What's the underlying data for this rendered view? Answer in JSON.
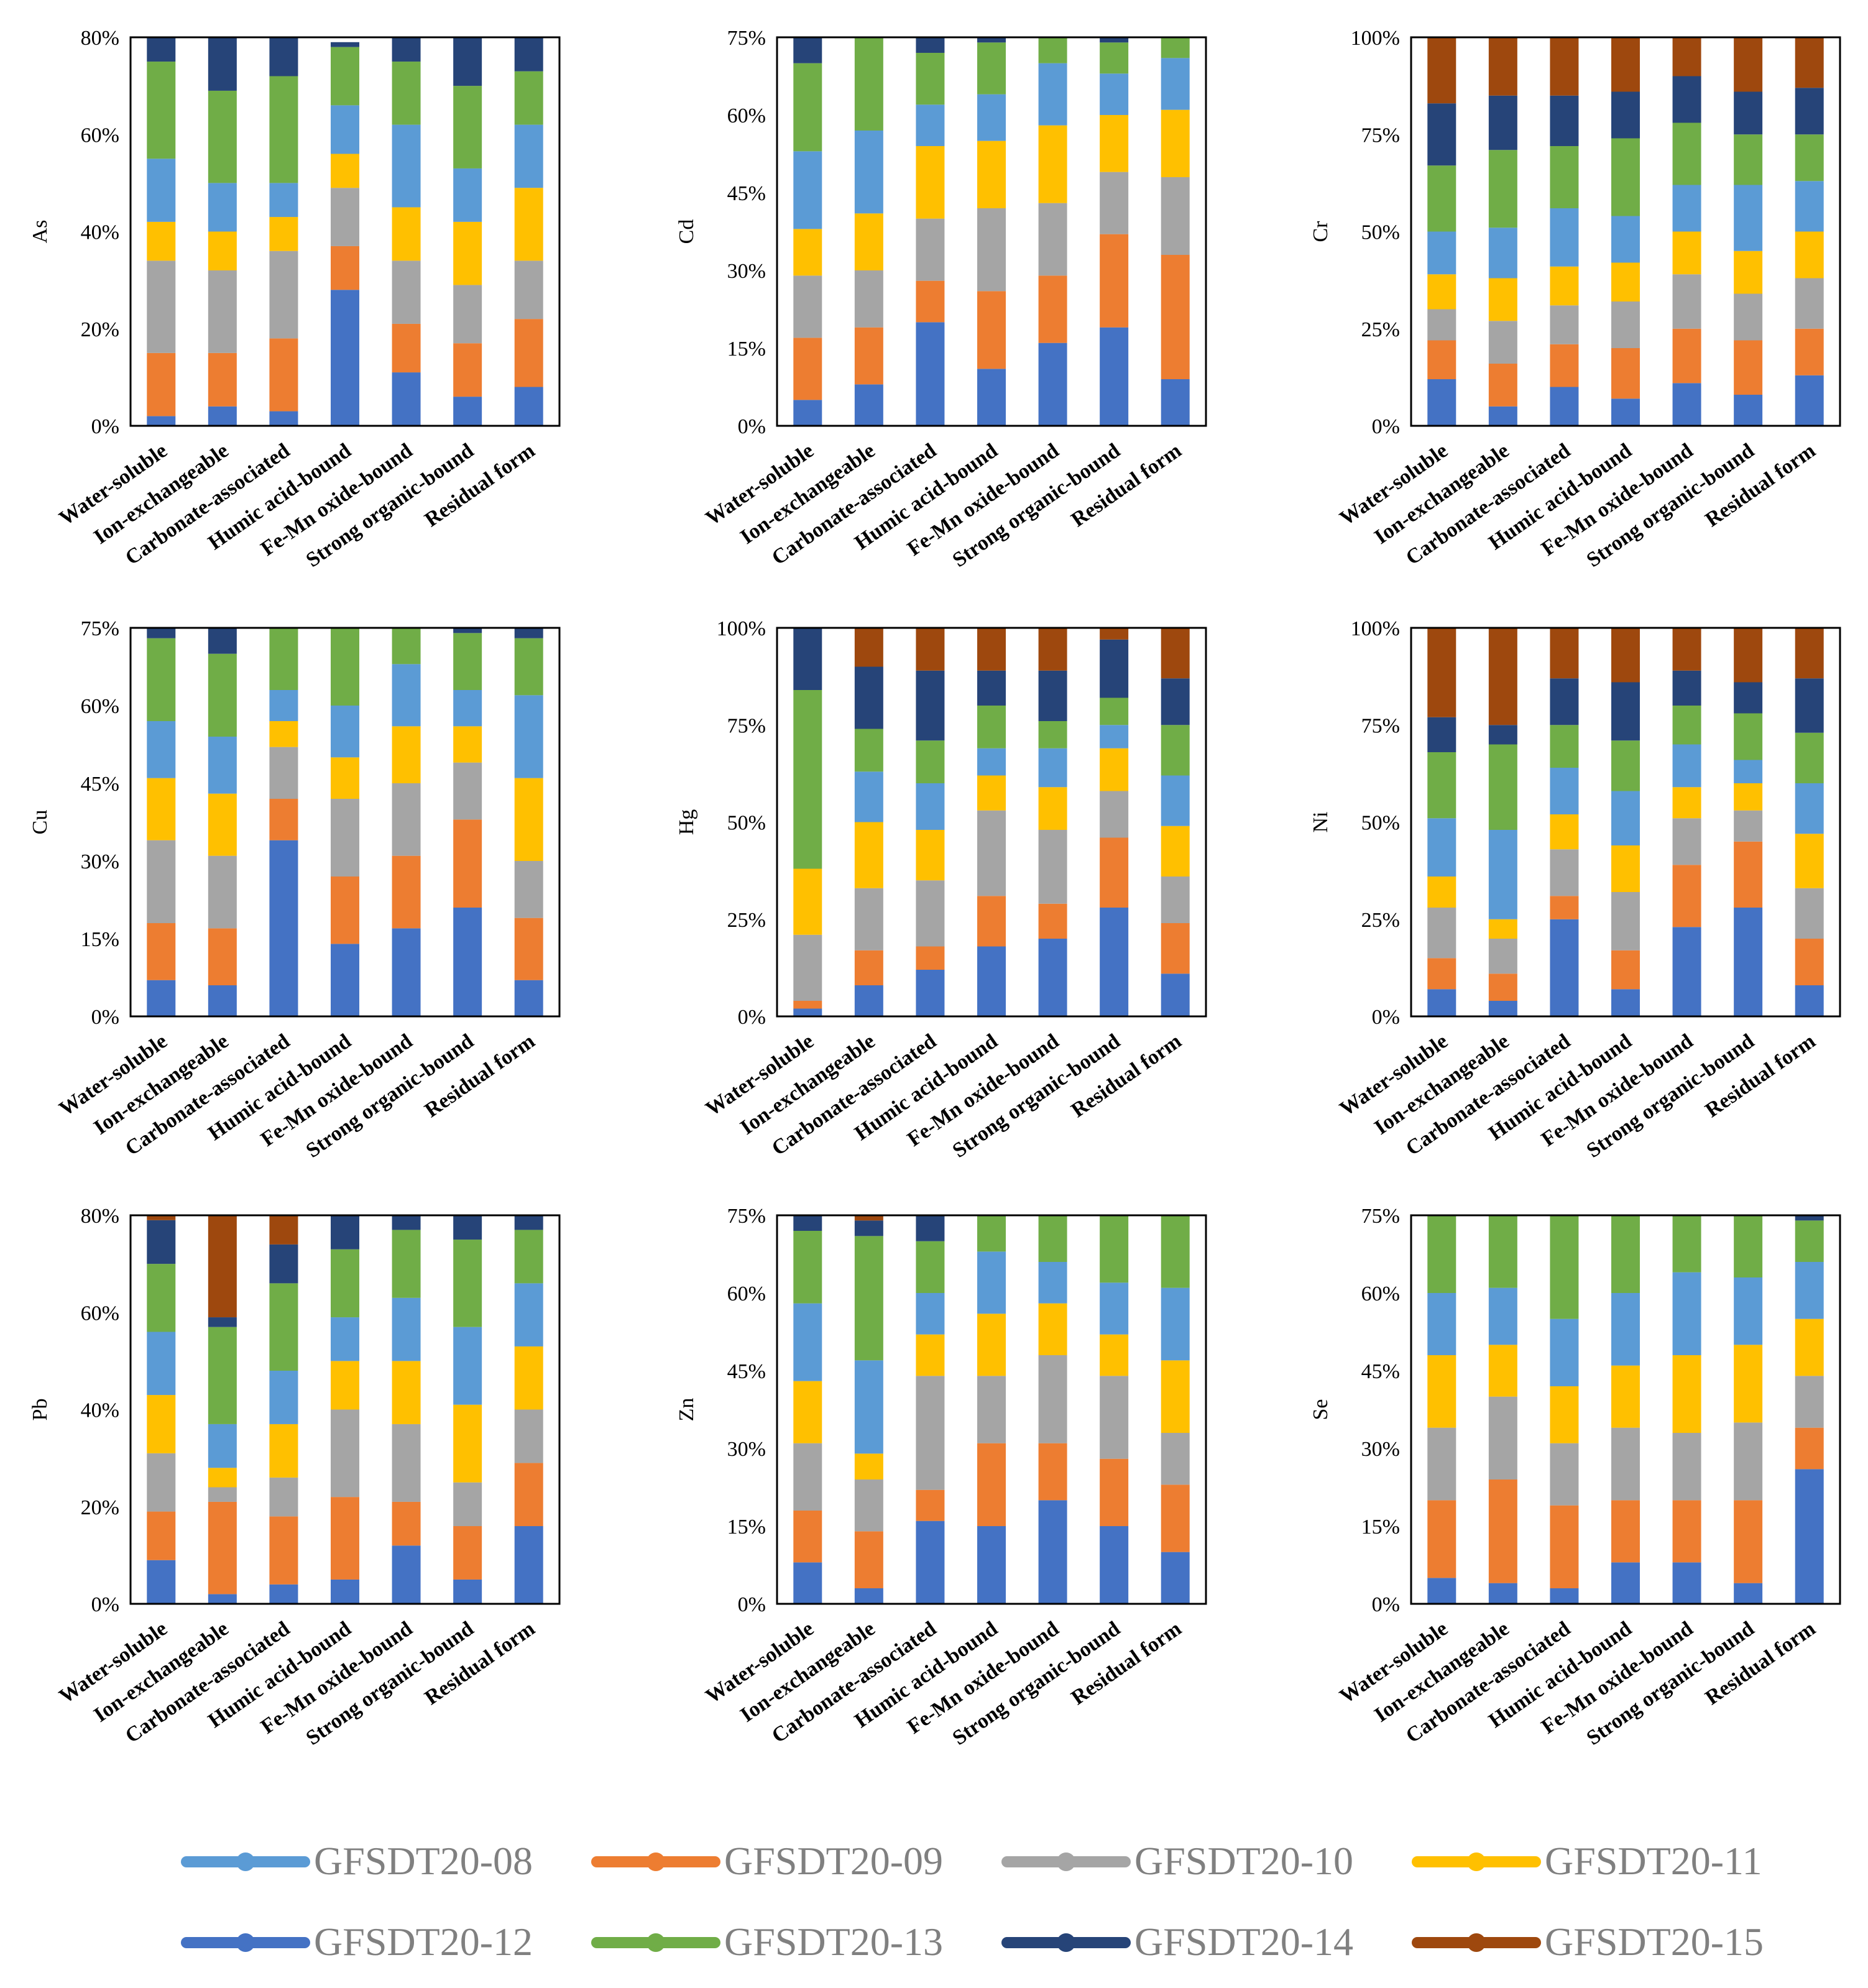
{
  "colors": {
    "GFSDT20-08": "#5b9bd5",
    "GFSDT20-09": "#ed7d31",
    "GFSDT20-10": "#a5a5a5",
    "GFSDT20-11": "#ffc000",
    "GFSDT20-12": "#4472c4",
    "GFSDT20-13": "#70ad47",
    "GFSDT20-14": "#264478",
    "GFSDT20-15": "#9e480e"
  },
  "stack_order": [
    "GFSDT20-12",
    "GFSDT20-09",
    "GFSDT20-10",
    "GFSDT20-11",
    "GFSDT20-08",
    "GFSDT20-13",
    "GFSDT20-14",
    "GFSDT20-15"
  ],
  "legend": {
    "entries": [
      "GFSDT20-08",
      "GFSDT20-09",
      "GFSDT20-10",
      "GFSDT20-11",
      "GFSDT20-12",
      "GFSDT20-13",
      "GFSDT20-14",
      "GFSDT20-15"
    ]
  },
  "chart_data": [
    {
      "type": "bar",
      "stacked": true,
      "ylabel": "As",
      "categories": [
        "Water-soluble",
        "Ion-exchangeable",
        "Carbonate-associated",
        "Humic acid-bound",
        "Fe-Mn oxide-bound",
        "Strong organic-bound",
        "Residual form"
      ],
      "yticks": [
        "0%",
        "20%",
        "40%",
        "60%",
        "80%"
      ],
      "ylim": [
        0,
        80
      ],
      "series": [
        {
          "name": "GFSDT20-12",
          "values": [
            2,
            4,
            3,
            28,
            11,
            6,
            8
          ]
        },
        {
          "name": "GFSDT20-09",
          "values": [
            13,
            11,
            15,
            9,
            10,
            11,
            14
          ]
        },
        {
          "name": "GFSDT20-10",
          "values": [
            19,
            17,
            18,
            12,
            13,
            12,
            12
          ]
        },
        {
          "name": "GFSDT20-11",
          "values": [
            8,
            8,
            7,
            7,
            11,
            13,
            15
          ]
        },
        {
          "name": "GFSDT20-08",
          "values": [
            13,
            10,
            7,
            10,
            17,
            11,
            13
          ]
        },
        {
          "name": "GFSDT20-13",
          "values": [
            20,
            19,
            22,
            12,
            13,
            17,
            11
          ]
        },
        {
          "name": "GFSDT20-14",
          "values": [
            5,
            11,
            8,
            1,
            5,
            10,
            7
          ]
        },
        {
          "name": "GFSDT20-15",
          "values": [
            0,
            0,
            0,
            0,
            0,
            0,
            0
          ]
        }
      ]
    },
    {
      "type": "bar",
      "stacked": true,
      "ylabel": "Cd",
      "categories": [
        "Water-soluble",
        "Ion-exchangeable",
        "Carbonate-associated",
        "Humic acid-bound",
        "Fe-Mn oxide-bound",
        "Strong organic-bound",
        "Residual form"
      ],
      "yticks": [
        "0%",
        "15%",
        "30%",
        "45%",
        "60%",
        "75%"
      ],
      "ylim": [
        0,
        75
      ],
      "series": [
        {
          "name": "GFSDT20-12",
          "values": [
            5,
            8,
            20,
            11,
            16,
            19,
            9
          ]
        },
        {
          "name": "GFSDT20-09",
          "values": [
            12,
            11,
            8,
            15,
            13,
            18,
            24
          ]
        },
        {
          "name": "GFSDT20-10",
          "values": [
            12,
            11,
            12,
            16,
            14,
            12,
            15
          ]
        },
        {
          "name": "GFSDT20-11",
          "values": [
            9,
            11,
            14,
            13,
            15,
            11,
            13
          ]
        },
        {
          "name": "GFSDT20-08",
          "values": [
            15,
            16,
            8,
            9,
            12,
            8,
            10
          ]
        },
        {
          "name": "GFSDT20-13",
          "values": [
            17,
            18,
            10,
            10,
            5,
            6,
            5
          ]
        },
        {
          "name": "GFSDT20-14",
          "values": [
            5,
            0,
            3,
            1,
            0,
            1,
            0
          ]
        },
        {
          "name": "GFSDT20-15",
          "values": [
            0,
            0,
            0,
            0,
            0,
            0,
            0
          ]
        }
      ]
    },
    {
      "type": "bar",
      "stacked": true,
      "ylabel": "Cr",
      "categories": [
        "Water-soluble",
        "Ion-exchangeable",
        "Carbonate-associated",
        "Humic acid-bound",
        "Fe-Mn oxide-bound",
        "Strong organic-bound",
        "Residual form"
      ],
      "yticks": [
        "0%",
        "25%",
        "50%",
        "75%",
        "100%"
      ],
      "ylim": [
        0,
        100
      ],
      "series": [
        {
          "name": "GFSDT20-12",
          "values": [
            12,
            5,
            10,
            7,
            11,
            8,
            13
          ]
        },
        {
          "name": "GFSDT20-09",
          "values": [
            10,
            11,
            11,
            13,
            14,
            14,
            12
          ]
        },
        {
          "name": "GFSDT20-10",
          "values": [
            8,
            11,
            10,
            12,
            14,
            12,
            13
          ]
        },
        {
          "name": "GFSDT20-11",
          "values": [
            9,
            11,
            10,
            10,
            11,
            11,
            12
          ]
        },
        {
          "name": "GFSDT20-08",
          "values": [
            11,
            13,
            15,
            12,
            12,
            17,
            13
          ]
        },
        {
          "name": "GFSDT20-13",
          "values": [
            17,
            20,
            16,
            20,
            16,
            13,
            12
          ]
        },
        {
          "name": "GFSDT20-14",
          "values": [
            16,
            14,
            13,
            12,
            12,
            11,
            12
          ]
        },
        {
          "name": "GFSDT20-15",
          "values": [
            17,
            15,
            15,
            14,
            10,
            14,
            13
          ]
        }
      ]
    },
    {
      "type": "bar",
      "stacked": true,
      "ylabel": "Cu",
      "categories": [
        "Water-soluble",
        "Ion-exchangeable",
        "Carbonate-associated",
        "Humic acid-bound",
        "Fe-Mn oxide-bound",
        "Strong organic-bound",
        "Residual form"
      ],
      "yticks": [
        "0%",
        "15%",
        "30%",
        "45%",
        "60%",
        "75%"
      ],
      "ylim": [
        0,
        75
      ],
      "series": [
        {
          "name": "GFSDT20-12",
          "values": [
            7,
            6,
            34,
            14,
            17,
            21,
            7
          ]
        },
        {
          "name": "GFSDT20-09",
          "values": [
            11,
            11,
            8,
            13,
            14,
            17,
            12
          ]
        },
        {
          "name": "GFSDT20-10",
          "values": [
            16,
            14,
            10,
            15,
            14,
            11,
            11
          ]
        },
        {
          "name": "GFSDT20-11",
          "values": [
            12,
            12,
            5,
            8,
            11,
            7,
            16
          ]
        },
        {
          "name": "GFSDT20-08",
          "values": [
            11,
            11,
            6,
            10,
            12,
            7,
            16
          ]
        },
        {
          "name": "GFSDT20-13",
          "values": [
            16,
            16,
            12,
            15,
            7,
            11,
            11
          ]
        },
        {
          "name": "GFSDT20-14",
          "values": [
            2,
            5,
            0,
            0,
            0,
            1,
            2
          ]
        },
        {
          "name": "GFSDT20-15",
          "values": [
            0,
            0,
            0,
            0,
            0,
            0,
            0
          ]
        }
      ]
    },
    {
      "type": "bar",
      "stacked": true,
      "ylabel": "Hg",
      "categories": [
        "Water-soluble",
        "Ion-exchangeable",
        "Carbonate-associated",
        "Humic acid-bound",
        "Fe-Mn oxide-bound",
        "Strong organic-bound",
        "Residual form"
      ],
      "yticks": [
        "0%",
        "25%",
        "50%",
        "75%",
        "100%"
      ],
      "ylim": [
        0,
        100
      ],
      "series": [
        {
          "name": "GFSDT20-12",
          "values": [
            2,
            8,
            12,
            18,
            20,
            28,
            11
          ]
        },
        {
          "name": "GFSDT20-09",
          "values": [
            2,
            9,
            6,
            13,
            9,
            18,
            13
          ]
        },
        {
          "name": "GFSDT20-10",
          "values": [
            17,
            16,
            17,
            22,
            19,
            12,
            12
          ]
        },
        {
          "name": "GFSDT20-11",
          "values": [
            17,
            17,
            13,
            9,
            11,
            11,
            13
          ]
        },
        {
          "name": "GFSDT20-08",
          "values": [
            0,
            13,
            12,
            7,
            10,
            6,
            13
          ]
        },
        {
          "name": "GFSDT20-13",
          "values": [
            46,
            11,
            11,
            11,
            7,
            7,
            13
          ]
        },
        {
          "name": "GFSDT20-14",
          "values": [
            16,
            16,
            18,
            9,
            13,
            15,
            12
          ]
        },
        {
          "name": "GFSDT20-15",
          "values": [
            0,
            10,
            11,
            11,
            11,
            3,
            13
          ]
        }
      ]
    },
    {
      "type": "bar",
      "stacked": true,
      "ylabel": "Ni",
      "categories": [
        "Water-soluble",
        "Ion-exchangeable",
        "Carbonate-associated",
        "Humic acid-bound",
        "Fe-Mn oxide-bound",
        "Strong organic-bound",
        "Residual form"
      ],
      "yticks": [
        "0%",
        "25%",
        "50%",
        "75%",
        "100%"
      ],
      "ylim": [
        0,
        100
      ],
      "series": [
        {
          "name": "GFSDT20-12",
          "values": [
            7,
            4,
            25,
            7,
            23,
            28,
            8
          ]
        },
        {
          "name": "GFSDT20-09",
          "values": [
            8,
            7,
            6,
            10,
            16,
            17,
            12
          ]
        },
        {
          "name": "GFSDT20-10",
          "values": [
            13,
            9,
            12,
            15,
            12,
            8,
            13
          ]
        },
        {
          "name": "GFSDT20-11",
          "values": [
            8,
            5,
            9,
            12,
            8,
            7,
            14
          ]
        },
        {
          "name": "GFSDT20-08",
          "values": [
            15,
            23,
            12,
            14,
            11,
            6,
            13
          ]
        },
        {
          "name": "GFSDT20-13",
          "values": [
            17,
            22,
            11,
            13,
            10,
            12,
            13
          ]
        },
        {
          "name": "GFSDT20-14",
          "values": [
            9,
            5,
            12,
            15,
            9,
            8,
            14
          ]
        },
        {
          "name": "GFSDT20-15",
          "values": [
            23,
            25,
            13,
            14,
            11,
            14,
            13
          ]
        }
      ]
    },
    {
      "type": "bar",
      "stacked": true,
      "ylabel": "Pb",
      "categories": [
        "Water-soluble",
        "Ion-exchangeable",
        "Carbonate-associated",
        "Humic acid-bound",
        "Fe-Mn oxide-bound",
        "Strong organic-bound",
        "Residual form"
      ],
      "yticks": [
        "0%",
        "20%",
        "40%",
        "60%",
        "80%"
      ],
      "ylim": [
        0,
        80
      ],
      "series": [
        {
          "name": "GFSDT20-12",
          "values": [
            9,
            2,
            4,
            5,
            12,
            5,
            16
          ]
        },
        {
          "name": "GFSDT20-09",
          "values": [
            10,
            19,
            14,
            17,
            9,
            11,
            13
          ]
        },
        {
          "name": "GFSDT20-10",
          "values": [
            12,
            3,
            8,
            18,
            16,
            9,
            11
          ]
        },
        {
          "name": "GFSDT20-11",
          "values": [
            12,
            4,
            11,
            10,
            13,
            16,
            13
          ]
        },
        {
          "name": "GFSDT20-08",
          "values": [
            13,
            9,
            11,
            9,
            13,
            16,
            13
          ]
        },
        {
          "name": "GFSDT20-13",
          "values": [
            14,
            20,
            18,
            14,
            14,
            18,
            11
          ]
        },
        {
          "name": "GFSDT20-14",
          "values": [
            9,
            2,
            8,
            7,
            3,
            5,
            3
          ]
        },
        {
          "name": "GFSDT20-15",
          "values": [
            1,
            21,
            6,
            0,
            0,
            0,
            0
          ]
        }
      ]
    },
    {
      "type": "bar",
      "stacked": true,
      "ylabel": "Zn",
      "categories": [
        "Water-soluble",
        "Ion-exchangeable",
        "Carbonate-associated",
        "Humic acid-bound",
        "Fe-Mn oxide-bound",
        "Strong organic-bound",
        "Residual form"
      ],
      "yticks": [
        "0%",
        "15%",
        "30%",
        "45%",
        "60%",
        "75%"
      ],
      "ylim": [
        0,
        75
      ],
      "series": [
        {
          "name": "GFSDT20-12",
          "values": [
            8,
            3,
            16,
            15,
            20,
            15,
            10
          ]
        },
        {
          "name": "GFSDT20-09",
          "values": [
            10,
            11,
            6,
            16,
            11,
            13,
            13
          ]
        },
        {
          "name": "GFSDT20-10",
          "values": [
            13,
            10,
            22,
            13,
            17,
            16,
            10
          ]
        },
        {
          "name": "GFSDT20-11",
          "values": [
            12,
            5,
            8,
            12,
            10,
            8,
            14
          ]
        },
        {
          "name": "GFSDT20-08",
          "values": [
            15,
            18,
            8,
            12,
            8,
            10,
            14
          ]
        },
        {
          "name": "GFSDT20-13",
          "values": [
            14,
            24,
            10,
            7,
            9,
            13,
            14
          ]
        },
        {
          "name": "GFSDT20-14",
          "values": [
            3,
            3,
            5,
            0,
            0,
            0,
            0
          ]
        },
        {
          "name": "GFSDT20-15",
          "values": [
            0,
            1,
            0,
            0,
            0,
            0,
            0
          ]
        }
      ]
    },
    {
      "type": "bar",
      "stacked": true,
      "ylabel": "Se",
      "categories": [
        "Water-soluble",
        "Ion-exchangeable",
        "Carbonate-associated",
        "Humic acid-bound",
        "Fe-Mn oxide-bound",
        "Strong organic-bound",
        "Residual form"
      ],
      "yticks": [
        "0%",
        "15%",
        "30%",
        "45%",
        "60%",
        "75%"
      ],
      "ylim": [
        0,
        75
      ],
      "series": [
        {
          "name": "GFSDT20-12",
          "values": [
            5,
            4,
            3,
            8,
            8,
            4,
            26
          ]
        },
        {
          "name": "GFSDT20-09",
          "values": [
            15,
            20,
            16,
            12,
            12,
            16,
            8
          ]
        },
        {
          "name": "GFSDT20-10",
          "values": [
            14,
            16,
            12,
            14,
            13,
            15,
            10
          ]
        },
        {
          "name": "GFSDT20-11",
          "values": [
            14,
            10,
            11,
            12,
            15,
            15,
            11
          ]
        },
        {
          "name": "GFSDT20-08",
          "values": [
            12,
            11,
            13,
            14,
            16,
            13,
            11
          ]
        },
        {
          "name": "GFSDT20-13",
          "values": [
            15,
            14,
            20,
            15,
            11,
            12,
            8
          ]
        },
        {
          "name": "GFSDT20-14",
          "values": [
            0,
            0,
            0,
            0,
            0,
            0,
            1
          ]
        },
        {
          "name": "GFSDT20-15",
          "values": [
            0,
            0,
            0,
            0,
            0,
            0,
            0
          ]
        }
      ]
    }
  ]
}
